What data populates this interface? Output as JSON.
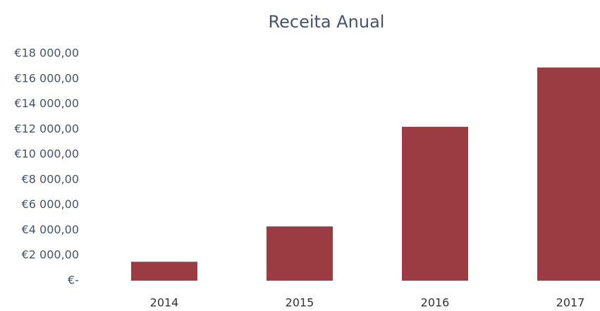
{
  "chart_data": {
    "type": "bar",
    "title": "Receita Anual",
    "categories": [
      "2014",
      "2015",
      "2016",
      "2017"
    ],
    "values": [
      1500,
      4300,
      12200,
      16900
    ],
    "color": "#9b3b42",
    "ylim": [
      0,
      18000
    ],
    "yticks": [
      {
        "value": 0,
        "label": "€-"
      },
      {
        "value": 2000,
        "label": "€2 000,00"
      },
      {
        "value": 4000,
        "label": "€4 000,00"
      },
      {
        "value": 6000,
        "label": "€6 000,00"
      },
      {
        "value": 8000,
        "label": "€8 000,00"
      },
      {
        "value": 10000,
        "label": "€10 000,00"
      },
      {
        "value": 12000,
        "label": "€12 000,00"
      },
      {
        "value": 14000,
        "label": "€14 000,00"
      },
      {
        "value": 16000,
        "label": "€16 000,00"
      },
      {
        "value": 18000,
        "label": "€18 000,00"
      }
    ],
    "grid": false
  }
}
